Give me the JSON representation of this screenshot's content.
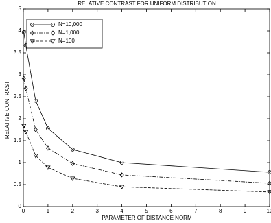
{
  "chart_data": {
    "type": "line",
    "title": "RELATIVE CONTRAST FOR UNIFORM DISTRIBUTION",
    "xlabel": "PARAMETER OF DISTANCE NORM",
    "ylabel": "RELATIVE CONTRAST",
    "x": [
      0.02,
      0.1,
      0.5,
      1,
      2,
      4,
      10
    ],
    "series": [
      {
        "name": "N=10,000",
        "color": "#000000",
        "marker": "circle",
        "linestyle": "solid",
        "values": [
          3.97,
          3.67,
          2.41,
          1.78,
          1.3,
          1.0,
          0.78
        ]
      },
      {
        "name": "N=1,000",
        "color": "#000000",
        "marker": "diamond",
        "linestyle": "dashdot",
        "values": [
          2.92,
          2.69,
          1.75,
          1.33,
          0.98,
          0.72,
          0.53
        ]
      },
      {
        "name": "N=100",
        "color": "#000000",
        "marker": "triangle-down",
        "linestyle": "dashed",
        "values": [
          1.84,
          1.7,
          1.16,
          0.89,
          0.64,
          0.45,
          0.33
        ]
      }
    ],
    "xlim": [
      0,
      10
    ],
    "xticks": [
      0,
      1,
      2,
      3,
      4,
      5,
      6,
      7,
      8,
      9,
      10
    ],
    "ylim": [
      0,
      4.5
    ],
    "yticks": [
      0,
      0.5,
      1,
      1.5,
      2,
      2.5,
      3,
      3.5,
      4,
      {
        "value": 4.5,
        "label": ".5"
      }
    ],
    "legend": "upper left"
  }
}
